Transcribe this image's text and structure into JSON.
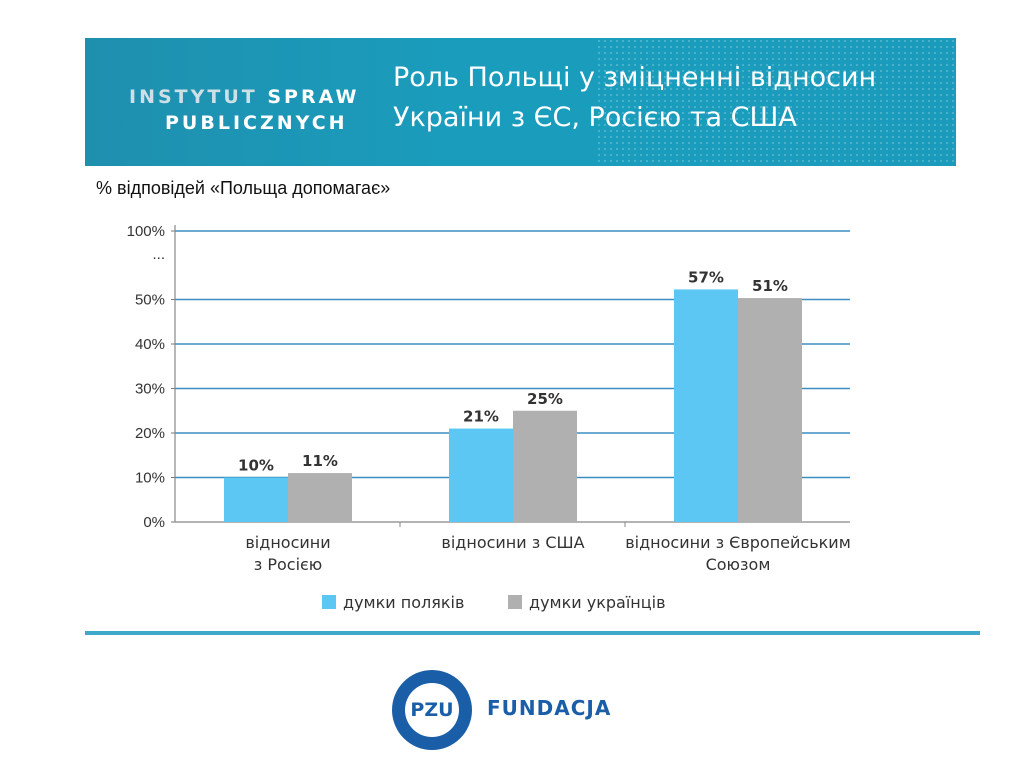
{
  "header": {
    "logo_line1_a": "INSTYTUT",
    "logo_line1_b": "SPRAW",
    "logo_line2": "PUBLICZNYCH",
    "title_line1": "Роль Польщі у зміцненні відносин",
    "title_line2": "України з ЄС, Росією та США"
  },
  "colors": {
    "banner": "#1b9bbb",
    "poles": "#5bc7f2",
    "ukrainians": "#b0b0b0",
    "accent_line": "#3ea9cb"
  },
  "chart_data": {
    "type": "bar",
    "title": "% відповідей «Польща допомагає»",
    "categories": [
      "відносини з Росією",
      "відносини з США",
      "відносини з Європейським Союзом"
    ],
    "category_lines": [
      [
        "відносини",
        "з Росією"
      ],
      [
        "відносини з США"
      ],
      [
        "відносини з Європейським",
        "Союзом"
      ]
    ],
    "series": [
      {
        "name": "думки поляків",
        "values": [
          10,
          21,
          57
        ],
        "labels": [
          "10%",
          "21%",
          "57%"
        ],
        "color": "#5bc7f2"
      },
      {
        "name": "думки українців",
        "values": [
          11,
          25,
          51
        ],
        "labels": [
          "11%",
          "25%",
          "51%"
        ],
        "color": "#b0b0b0"
      }
    ],
    "y_ticks": [
      "0%",
      "10%",
      "20%",
      "30%",
      "40%",
      "50%",
      "...",
      "100%"
    ],
    "y_break": "axis broken between 50% and 100%",
    "grid": true,
    "legend": "bottom"
  },
  "footer": {
    "logo_text": "PZU",
    "org_name": "FUNDACJA"
  }
}
